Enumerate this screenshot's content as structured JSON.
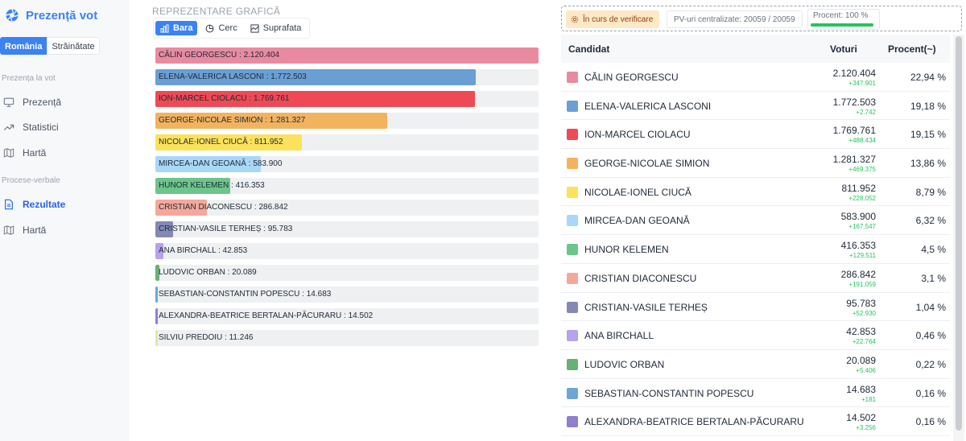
{
  "sidebar": {
    "title": "Prezență vot",
    "region_tabs": [
      "România",
      "Străinătate"
    ],
    "section1": "Prezența la vot",
    "section1_items": [
      "Prezență",
      "Statistici",
      "Hartă"
    ],
    "section2": "Procese-verbale",
    "section2_items": [
      "Rezultate",
      "Hartă"
    ],
    "active_item": "Rezultate"
  },
  "chart": {
    "heading": "REPREZENTARE GRAFICĂ",
    "tabs": [
      "Bara",
      "Cerc",
      "Suprafata"
    ],
    "active_tab": "Bara"
  },
  "status": {
    "verify_label": "În curs de verificare",
    "pv_label": "PV-uri centralizate: 20059 / 20059",
    "percent_label": "Procent: 100 %",
    "percent_value": 100
  },
  "table": {
    "headers": [
      "Candidat",
      "Voturi",
      "Procent(~)"
    ]
  },
  "chart_data": {
    "type": "bar",
    "categories": [
      "CĂLIN GEORGESCU",
      "ELENA-VALERICA LASCONI",
      "ION-MARCEL CIOLACU",
      "GEORGE-NICOLAE SIMION",
      "NICOLAE-IONEL CIUCĂ",
      "MIRCEA-DAN GEOANĂ",
      "HUNOR KELEMEN",
      "CRISTIAN DIACONESCU",
      "CRISTIAN-VASILE TERHEȘ",
      "ANA BIRCHALL",
      "LUDOVIC ORBAN",
      "SEBASTIAN-CONSTANTIN POPESCU",
      "ALEXANDRA-BEATRICE BERTALAN-PĂCURARU",
      "SILVIU PREDOIU"
    ],
    "values": [
      2120404,
      1772503,
      1769761,
      1281327,
      811952,
      583900,
      416353,
      286842,
      95783,
      42853,
      20089,
      14683,
      14502,
      11246
    ],
    "bar_labels": [
      "CĂLIN GEORGESCU : 2.120.404",
      "ELENA-VALERICA LASCONI : 1.772.503",
      "ION-MARCEL CIOLACU : 1.769.761",
      "GEORGE-NICOLAE SIMION : 1.281.327",
      "NICOLAE-IONEL CIUCĂ : 811.952",
      "MIRCEA-DAN GEOANĂ : 583.900",
      "HUNOR KELEMEN : 416.353",
      "CRISTIAN DIACONESCU : 286.842",
      "CRISTIAN-VASILE TERHEȘ : 95.783",
      "ANA BIRCHALL : 42.853",
      "LUDOVIC ORBAN : 20.089",
      "SEBASTIAN-CONSTANTIN POPESCU : 14.683",
      "ALEXANDRA-BEATRICE BERTALAN-PĂCURARU : 14.502",
      "SILVIU PREDOIU : 11.246"
    ],
    "colors": [
      "#e98ba0",
      "#6a9fd4",
      "#ee4a55",
      "#f2b35f",
      "#fbe25a",
      "#a9d7f7",
      "#6cc58b",
      "#f4a89b",
      "#8389b4",
      "#b7a2ec",
      "#6aaf77",
      "#6fa5d6",
      "#8f7fcc",
      "#dfe8b0"
    ],
    "xlim": [
      0,
      2120404
    ]
  },
  "candidates": [
    {
      "name": "CĂLIN GEORGESCU",
      "votes": "2.120.404",
      "delta": "+347.901",
      "percent": "22,94 %",
      "color": "#e98ba0"
    },
    {
      "name": "ELENA-VALERICA LASCONI",
      "votes": "1.772.503",
      "delta": "+2.742",
      "percent": "19,18 %",
      "color": "#6a9fd4"
    },
    {
      "name": "ION-MARCEL CIOLACU",
      "votes": "1.769.761",
      "delta": "+488.434",
      "percent": "19,15 %",
      "color": "#ee4a55"
    },
    {
      "name": "GEORGE-NICOLAE SIMION",
      "votes": "1.281.327",
      "delta": "+469.375",
      "percent": "13,86 %",
      "color": "#f2b35f"
    },
    {
      "name": "NICOLAE-IONEL CIUCĂ",
      "votes": "811.952",
      "delta": "+228.052",
      "percent": "8,79 %",
      "color": "#fbe25a"
    },
    {
      "name": "MIRCEA-DAN GEOANĂ",
      "votes": "583.900",
      "delta": "+167.547",
      "percent": "6,32 %",
      "color": "#a9d7f7"
    },
    {
      "name": "HUNOR KELEMEN",
      "votes": "416.353",
      "delta": "+129.511",
      "percent": "4,5 %",
      "color": "#6cc58b"
    },
    {
      "name": "CRISTIAN DIACONESCU",
      "votes": "286.842",
      "delta": "+191.059",
      "percent": "3,1 %",
      "color": "#f4a89b"
    },
    {
      "name": "CRISTIAN-VASILE TERHEȘ",
      "votes": "95.783",
      "delta": "+52.930",
      "percent": "1,04 %",
      "color": "#8389b4"
    },
    {
      "name": "ANA BIRCHALL",
      "votes": "42.853",
      "delta": "+22.764",
      "percent": "0,46 %",
      "color": "#b7a2ec"
    },
    {
      "name": "LUDOVIC ORBAN",
      "votes": "20.089",
      "delta": "+5.406",
      "percent": "0,22 %",
      "color": "#6aaf77"
    },
    {
      "name": "SEBASTIAN-CONSTANTIN POPESCU",
      "votes": "14.683",
      "delta": "+181",
      "percent": "0,16 %",
      "color": "#6fa5d6"
    },
    {
      "name": "ALEXANDRA-BEATRICE BERTALAN-PĂCURARU",
      "votes": "14.502",
      "delta": "+3.256",
      "percent": "0,16 %",
      "color": "#8f7fcc"
    }
  ]
}
